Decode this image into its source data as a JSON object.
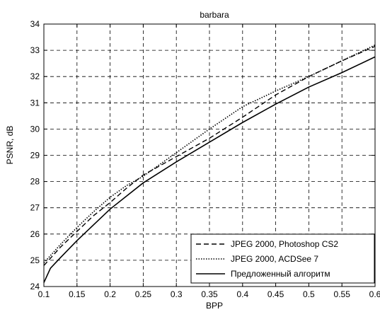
{
  "chart_data": {
    "type": "line",
    "title": "barbara",
    "xlabel": "BPP",
    "ylabel": "PSNR, dB",
    "xlim": [
      0.1,
      0.6
    ],
    "ylim": [
      24,
      34
    ],
    "xticks": [
      0.1,
      0.15,
      0.2,
      0.25,
      0.3,
      0.35,
      0.4,
      0.45,
      0.5,
      0.55,
      0.6
    ],
    "yticks": [
      24,
      25,
      26,
      27,
      28,
      29,
      30,
      31,
      32,
      33,
      34
    ],
    "xtick_labels": [
      "0.1",
      "0.15",
      "0.2",
      "0.25",
      "0.3",
      "0.35",
      "0.4",
      "0.45",
      "0.5",
      "0.55",
      "0.6"
    ],
    "ytick_labels": [
      "24",
      "25",
      "26",
      "27",
      "28",
      "29",
      "30",
      "31",
      "32",
      "33",
      "34"
    ],
    "grid": true,
    "legend_position": "bottom-right",
    "series": [
      {
        "name": "JPEG 2000, Photoshop CS2",
        "style": "dashed",
        "color": "#000000",
        "x": [
          0.1,
          0.125,
          0.15,
          0.175,
          0.2,
          0.225,
          0.25,
          0.3,
          0.35,
          0.4,
          0.45,
          0.5,
          0.55,
          0.6
        ],
        "y": [
          24.8,
          25.5,
          26.1,
          26.7,
          27.2,
          27.75,
          28.25,
          28.95,
          29.65,
          30.45,
          31.3,
          32.0,
          32.6,
          33.15
        ]
      },
      {
        "name": "JPEG 2000, ACDSee 7",
        "style": "dotted",
        "color": "#000000",
        "x": [
          0.1,
          0.125,
          0.15,
          0.175,
          0.2,
          0.225,
          0.25,
          0.3,
          0.35,
          0.4,
          0.45,
          0.5,
          0.55,
          0.6
        ],
        "y": [
          24.9,
          25.6,
          26.25,
          26.85,
          27.4,
          27.85,
          28.2,
          29.1,
          30.0,
          30.85,
          31.45,
          32.0,
          32.6,
          33.2
        ]
      },
      {
        "name": "Предложенный алгоритм",
        "style": "solid",
        "color": "#000000",
        "x": [
          0.1,
          0.11,
          0.125,
          0.15,
          0.175,
          0.2,
          0.225,
          0.25,
          0.3,
          0.35,
          0.4,
          0.45,
          0.5,
          0.55,
          0.6
        ],
        "y": [
          24.15,
          24.7,
          25.1,
          25.75,
          26.35,
          26.95,
          27.45,
          27.95,
          28.75,
          29.5,
          30.25,
          30.95,
          31.6,
          32.15,
          32.75
        ]
      }
    ]
  }
}
